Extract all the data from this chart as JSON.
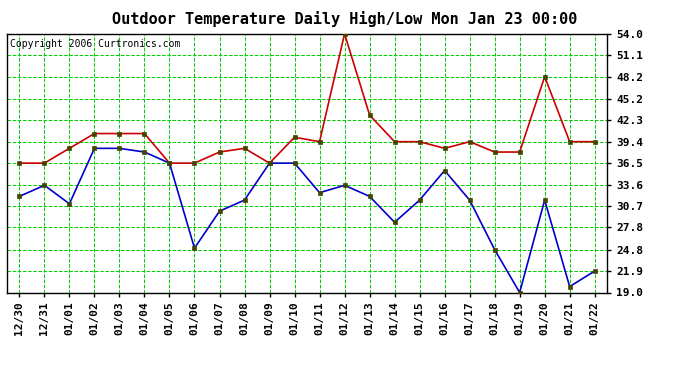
{
  "title": "Outdoor Temperature Daily High/Low Mon Jan 23 00:00",
  "copyright": "Copyright 2006 Curtronics.com",
  "labels": [
    "12/30",
    "12/31",
    "01/01",
    "01/02",
    "01/03",
    "01/04",
    "01/05",
    "01/06",
    "01/07",
    "01/08",
    "01/09",
    "01/10",
    "01/11",
    "01/12",
    "01/13",
    "01/14",
    "01/15",
    "01/16",
    "01/17",
    "01/18",
    "01/19",
    "01/20",
    "01/21",
    "01/22"
  ],
  "high": [
    36.5,
    36.5,
    38.5,
    40.5,
    40.5,
    40.5,
    36.5,
    36.5,
    38.0,
    38.5,
    36.5,
    40.0,
    39.4,
    54.0,
    43.0,
    39.4,
    39.4,
    38.5,
    39.4,
    38.0,
    38.0,
    48.2,
    39.4,
    39.4
  ],
  "low": [
    32.0,
    33.5,
    31.0,
    38.5,
    38.5,
    38.0,
    36.5,
    25.0,
    30.0,
    31.5,
    36.5,
    36.5,
    32.5,
    33.5,
    32.0,
    28.5,
    31.5,
    35.5,
    31.5,
    24.8,
    19.0,
    31.5,
    19.8,
    21.9
  ],
  "yticks": [
    19.0,
    21.9,
    24.8,
    27.8,
    30.7,
    33.6,
    36.5,
    39.4,
    42.3,
    45.2,
    48.2,
    51.1,
    54.0
  ],
  "ymin": 19.0,
  "ymax": 54.0,
  "bg_color": "#ffffff",
  "plot_bg": "#ffffff",
  "grid_color": "#00cc00",
  "high_color": "#cc0000",
  "low_color": "#0000cc",
  "marker_color": "#444400",
  "title_fontsize": 11,
  "tick_fontsize": 8,
  "copyright_fontsize": 7
}
